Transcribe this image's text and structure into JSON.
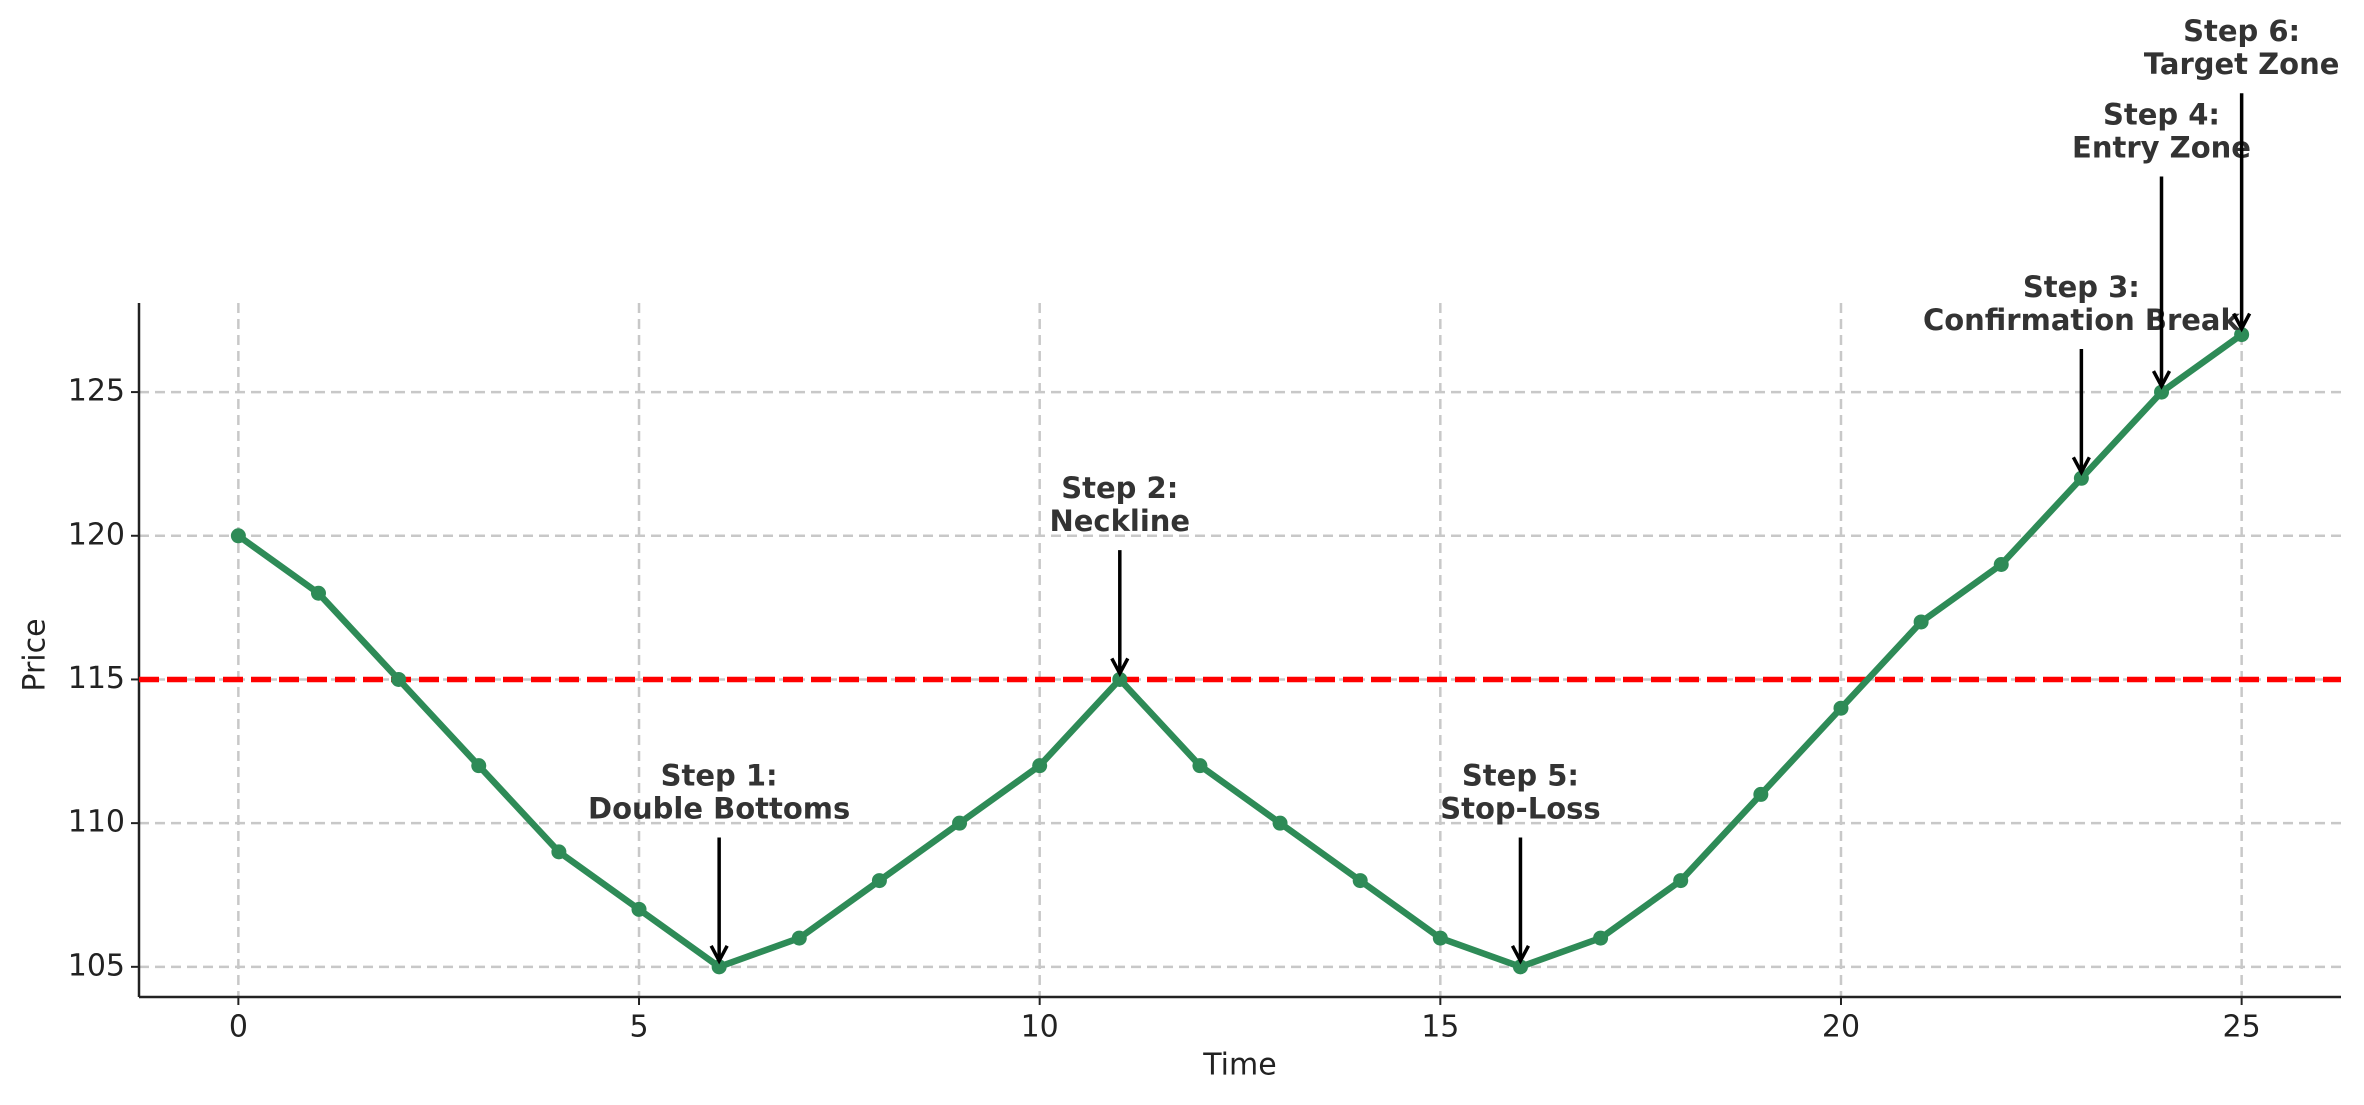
{
  "chart_data": {
    "type": "line",
    "x_label": "Time",
    "y_label": "Price",
    "x": [
      0,
      1,
      2,
      3,
      4,
      5,
      6,
      7,
      8,
      9,
      10,
      11,
      12,
      13,
      14,
      15,
      16,
      17,
      18,
      19,
      20,
      21,
      22,
      23,
      24,
      25
    ],
    "series": [
      {
        "color": "#2e8b57",
        "values": [
          120,
          118,
          115,
          112,
          109,
          107,
          105,
          106,
          108,
          110,
          112,
          115,
          112,
          110,
          108,
          106,
          105,
          106,
          108,
          111,
          114,
          117,
          119,
          122,
          125,
          127
        ]
      }
    ],
    "hline": {
      "value": 115,
      "color": "#ff0000"
    },
    "xlim": [
      -1.24,
      26.24
    ],
    "ylim": [
      103.95,
      128.1
    ],
    "xticks": [
      0,
      5,
      10,
      15,
      20,
      25
    ],
    "yticks": [
      105,
      110,
      115,
      120,
      125
    ],
    "grid": true,
    "annotations": [
      {
        "lines": [
          "Step 1:",
          "Double Bottoms"
        ],
        "x": 6,
        "y": 105,
        "text_y": 109.5
      },
      {
        "lines": [
          "Step 2:",
          "Neckline"
        ],
        "x": 11,
        "y": 115,
        "text_y": 119.5
      },
      {
        "lines": [
          "Step 3:",
          "Confirmation Break"
        ],
        "x": 23,
        "y": 122,
        "text_y": 126.5
      },
      {
        "lines": [
          "Step 4:",
          "Entry Zone"
        ],
        "x": 24,
        "y": 125,
        "text_y": 132.5
      },
      {
        "lines": [
          "Step 5:",
          "Stop-Loss"
        ],
        "x": 16,
        "y": 105,
        "text_y": 109.5
      },
      {
        "lines": [
          "Step 6:",
          "Target Zone"
        ],
        "x": 25,
        "y": 127,
        "text_y": 135.4
      }
    ]
  }
}
